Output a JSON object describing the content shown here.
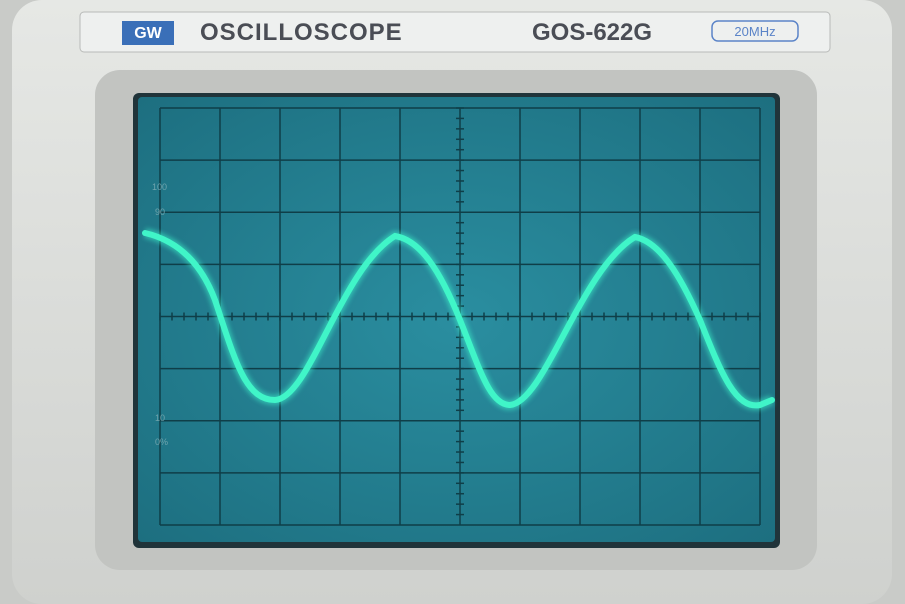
{
  "panel": {
    "brand": "GW",
    "title": "OSCILLOSCOPE",
    "model": "GOS-622G",
    "bandwidth": "20MHz"
  },
  "screen": {
    "labels": [
      "100",
      "90",
      "10",
      "0%"
    ]
  }
}
